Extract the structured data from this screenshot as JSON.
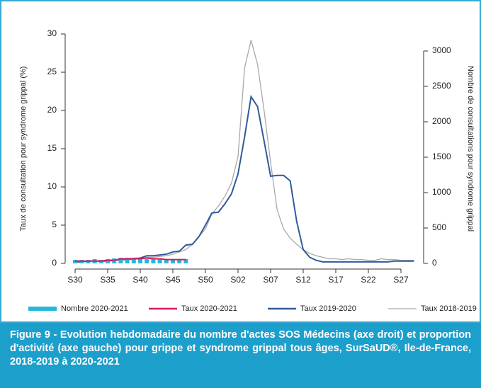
{
  "chart_data": {
    "type": "line",
    "y_label": "Taux de consultation pour syndrome grippal (%)",
    "y2_label": "Nombre de consultations pour syndrome grippal",
    "caption": "Figure 9 -  Evolution hebdomadaire du nombre d'actes SOS Médecins (axe droit) et proportion d'activité (axe gauche) pour grippe et syndrome grippal tous âges, SurSaUD®, Ile-de-France, 2018-2019 à 2020-2021",
    "categories": [
      "S30",
      null,
      null,
      null,
      null,
      "S35",
      null,
      null,
      null,
      null,
      "S40",
      null,
      null,
      null,
      null,
      "S45",
      null,
      null,
      null,
      null,
      "S50",
      null,
      null,
      null,
      null,
      "S02",
      null,
      null,
      null,
      null,
      "S07",
      null,
      null,
      null,
      null,
      "S12",
      null,
      null,
      null,
      null,
      "S17",
      null,
      null,
      null,
      null,
      "S22",
      null,
      null,
      null,
      null,
      "S27",
      null,
      null
    ],
    "ylim": [
      0,
      30
    ],
    "yticks": [
      0,
      5,
      10,
      15,
      20,
      25,
      30
    ],
    "y2lim": [
      0,
      3240
    ],
    "y2ticks": [
      0,
      500,
      1000,
      1500,
      2000,
      2500,
      3000
    ],
    "series": [
      {
        "name": "Nombre 2020-2021",
        "type": "bar",
        "axis": "y2",
        "color": "#29b6dc",
        "values": [
          50,
          50,
          50,
          60,
          50,
          60,
          70,
          80,
          80,
          70,
          60,
          60,
          70,
          60,
          60,
          50,
          50,
          60,
          null,
          null,
          null,
          null,
          null,
          null,
          null,
          null,
          null,
          null,
          null,
          null,
          null,
          null,
          null,
          null,
          null,
          null,
          null,
          null,
          null,
          null,
          null,
          null,
          null,
          null,
          null,
          null,
          null,
          null,
          null,
          null,
          null,
          null,
          null
        ]
      },
      {
        "name": "Taux 2020-2021",
        "type": "line",
        "color": "#d81b5e",
        "values": [
          0.3,
          0.3,
          0.3,
          0.3,
          0.3,
          0.4,
          0.4,
          0.6,
          0.6,
          0.6,
          0.6,
          0.7,
          0.6,
          0.6,
          0.5,
          0.5,
          0.5,
          0.5,
          null,
          null,
          null,
          null,
          null,
          null,
          null,
          null,
          null,
          null,
          null,
          null,
          null,
          null,
          null,
          null,
          null,
          null,
          null,
          null,
          null,
          null,
          null,
          null,
          null,
          null,
          null,
          null,
          null,
          null,
          null,
          null,
          null,
          null,
          null
        ]
      },
      {
        "name": "Taux 2019-2020",
        "type": "line",
        "color": "#2f5b9c",
        "values": [
          0.2,
          0.2,
          0.3,
          0.3,
          0.3,
          0.3,
          0.4,
          0.5,
          0.5,
          0.6,
          0.7,
          1.0,
          1.0,
          1.1,
          1.2,
          1.5,
          1.6,
          2.4,
          2.5,
          3.5,
          5.0,
          6.6,
          6.7,
          7.8,
          9.1,
          11.7,
          16.5,
          21.8,
          20.5,
          16,
          11.4,
          11.5,
          11.5,
          10.8,
          5.5,
          1.8,
          0.8,
          0.4,
          0.2,
          0.2,
          0.2,
          0.2,
          0.2,
          0.2,
          0.2,
          0.2,
          0.2,
          0.2,
          0.2,
          0.3,
          0.3,
          0.3,
          0.3
        ]
      },
      {
        "name": "Taux 2018-2019",
        "type": "line",
        "color": "#a8a8a8",
        "values": [
          0.3,
          0.3,
          0.3,
          0.3,
          0.4,
          0.4,
          0.5,
          0.5,
          0.6,
          0.7,
          0.7,
          0.8,
          0.8,
          0.9,
          1.0,
          1.2,
          1.5,
          1.8,
          2.5,
          3.5,
          4.5,
          6.5,
          7.5,
          8.8,
          10.5,
          14,
          25.5,
          29.2,
          26,
          20,
          13.2,
          7,
          4.5,
          3.3,
          2.5,
          1.8,
          1.3,
          1.0,
          0.8,
          0.6,
          0.6,
          0.5,
          0.6,
          0.5,
          0.5,
          0.4,
          0.4,
          0.6,
          0.5,
          0.5,
          0.4,
          0.4,
          0.4
        ]
      }
    ]
  }
}
